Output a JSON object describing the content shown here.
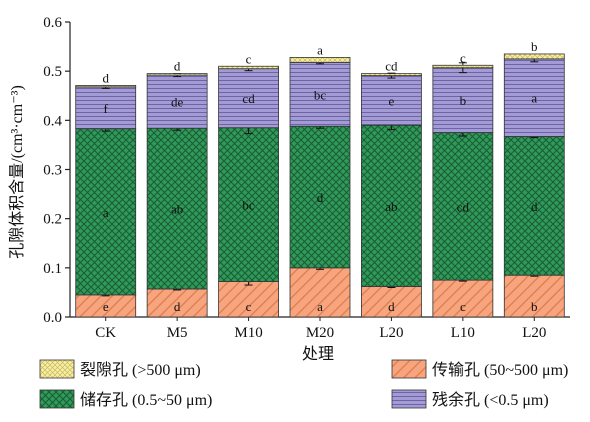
{
  "chart_data": {
    "type": "bar",
    "stacked": true,
    "title": "",
    "xlabel": "处理",
    "ylabel": "孔隙体积含量/(cm³·cm⁻³)",
    "ylim": [
      0,
      0.6
    ],
    "yticks": [
      0.0,
      0.1,
      0.2,
      0.3,
      0.4,
      0.5,
      0.6
    ],
    "ytick_labels": [
      "0.0",
      "0.1",
      "0.2",
      "0.3",
      "0.4",
      "0.5",
      "0.6"
    ],
    "grid": false,
    "legend_position": "bottom",
    "categories": [
      "CK",
      "M5",
      "M10",
      "M20",
      "L20",
      "L10",
      "L20"
    ],
    "series": [
      {
        "name": "传输孔 (50~500 μm)",
        "key": "transport",
        "color": "#f7a57e",
        "pattern": "hatch",
        "values": [
          0.045,
          0.057,
          0.072,
          0.1,
          0.062,
          0.075,
          0.085
        ],
        "errors": [
          0.002,
          0.002,
          0.007,
          0.003,
          0.002,
          0.002,
          0.002
        ],
        "sig": [
          "e",
          "d",
          "c",
          "a",
          "d",
          "c",
          "b"
        ]
      },
      {
        "name": "储存孔 (0.5~50 μm)",
        "key": "storage",
        "color": "#2f9a5a",
        "pattern": "crosshatch",
        "values": [
          0.338,
          0.327,
          0.313,
          0.288,
          0.328,
          0.3,
          0.282
        ],
        "errors": [
          0.005,
          0.004,
          0.012,
          0.004,
          0.009,
          0.007,
          0.002
        ],
        "sig": [
          "a",
          "ab",
          "bc",
          "d",
          "ab",
          "cd",
          "d"
        ]
      },
      {
        "name": "残余孔 (<0.5 μm)",
        "key": "residual",
        "color": "#9f98cf",
        "pattern": "lines",
        "values": [
          0.085,
          0.108,
          0.12,
          0.13,
          0.101,
          0.132,
          0.158
        ],
        "errors": [
          0.003,
          0.003,
          0.004,
          0.003,
          0.005,
          0.01,
          0.006
        ],
        "sig": [
          "f",
          "de",
          "cd",
          "bc",
          "e",
          "b",
          "a"
        ]
      },
      {
        "name": "裂隙孔 (>500 μm)",
        "key": "fissure",
        "color": "#f4e9a0",
        "pattern": "fine",
        "values": [
          0.003,
          0.003,
          0.005,
          0.01,
          0.004,
          0.005,
          0.01
        ],
        "errors": [
          0,
          0,
          0,
          0,
          0,
          0,
          0
        ],
        "sig": [
          "d",
          "d",
          "c",
          "a",
          "cd",
          "c",
          "b"
        ]
      }
    ],
    "legend": [
      {
        "name": "裂隙孔  (>500 μm)",
        "key": "fissure"
      },
      {
        "name": "传输孔 (50~500 μm)",
        "key": "transport"
      },
      {
        "name": "储存孔 (0.5~50 μm)",
        "key": "storage"
      },
      {
        "name": "残余孔 (<0.5 μm)",
        "key": "residual"
      }
    ]
  }
}
